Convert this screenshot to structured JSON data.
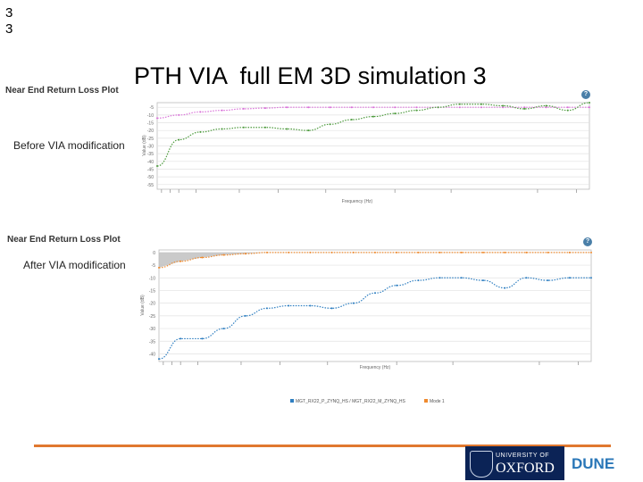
{
  "slide_number": [
    "3",
    "3"
  ],
  "title": "PTH VIA  full EM 3D simulation 3",
  "side_labels": {
    "before": "Before VIA modification",
    "after": "After VIA modification"
  },
  "help_glyph": "?",
  "oxford_logo": {
    "small": "UNIVERSITY OF",
    "big": "OXFORD"
  },
  "dune_logo": "DUNE",
  "colors": {
    "pink": "#d96fd8",
    "green": "#4c9a3c",
    "blue": "#2f7fc1",
    "orange": "#ef8a2e",
    "accent_line": "#e0782f",
    "oxford_navy": "#0b2356"
  },
  "chart_data": [
    {
      "type": "line",
      "title": "Near End Return Loss Plot",
      "ylabel": "Value (dB)",
      "xlabel": "Frequency (Hz)",
      "y_ticks": [
        "-5",
        "-10",
        "-15",
        "-20",
        "-25",
        "-30",
        "-35",
        "-40",
        "-45",
        "-50",
        "-55"
      ],
      "ylim": [
        -58,
        -2
      ],
      "x": [
        0.0,
        0.05,
        0.1,
        0.15,
        0.2,
        0.25,
        0.3,
        0.35,
        0.4,
        0.45,
        0.5,
        0.55,
        0.6,
        0.65,
        0.7,
        0.75,
        0.8,
        0.85,
        0.9,
        0.95,
        1.0
      ],
      "series": [
        {
          "values": [
            -12,
            -10,
            -8,
            -7,
            -6,
            -5.5,
            -5,
            -5,
            -5,
            -5,
            -5,
            -5,
            -5,
            -5,
            -5,
            -5,
            -5,
            -5,
            -5,
            -5,
            -5
          ]
        },
        {
          "values": [
            -43,
            -26,
            -21,
            -19,
            -18,
            -18,
            -19,
            -20,
            -16,
            -13,
            -11,
            -9,
            -7,
            -5,
            -3,
            -3,
            -4,
            -6,
            -4,
            -7,
            -2
          ]
        }
      ],
      "grid": true
    },
    {
      "type": "line",
      "title": "Near End Return Loss Plot",
      "ylabel": "Value (dB)",
      "xlabel": "Frequency (Hz)",
      "y_ticks": [
        "0",
        "-5",
        "-10",
        "-15",
        "-20",
        "-25",
        "-30",
        "-35",
        "-40"
      ],
      "ylim": [
        -43,
        1
      ],
      "x": [
        0.0,
        0.05,
        0.1,
        0.15,
        0.2,
        0.25,
        0.3,
        0.35,
        0.4,
        0.45,
        0.5,
        0.55,
        0.6,
        0.65,
        0.7,
        0.75,
        0.8,
        0.85,
        0.9,
        0.95,
        1.0
      ],
      "series": [
        {
          "name": "MGT_RX22_P_ZYNQ_HS / MGT_RX22_M_ZYNQ_HS",
          "values": [
            -42,
            -34,
            -34,
            -30,
            -25,
            -22,
            -21,
            -21,
            -22,
            -20,
            -16,
            -13,
            -11,
            -10,
            -10,
            -11,
            -14,
            -10,
            -11,
            -10,
            -10
          ]
        },
        {
          "name": "Mode 1",
          "values": [
            -6,
            -3.5,
            -2,
            -1,
            -0.5,
            0,
            0,
            0,
            0,
            0,
            0,
            0,
            0,
            0,
            0,
            0,
            0,
            0,
            0,
            0,
            0
          ]
        }
      ],
      "legend_placement": "bottom-center",
      "grid": true
    }
  ]
}
